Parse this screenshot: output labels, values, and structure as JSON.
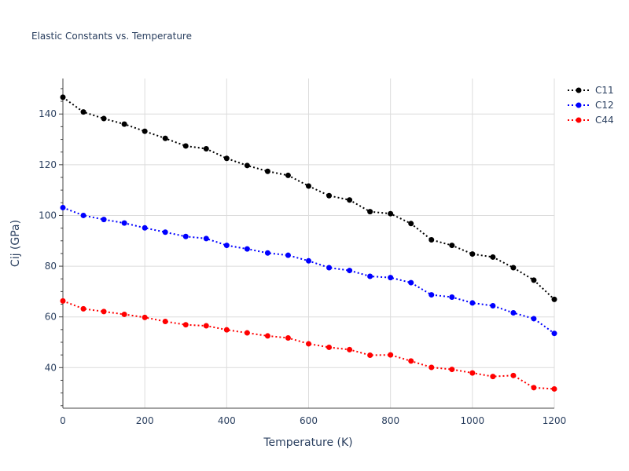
{
  "chart_data": {
    "type": "line",
    "title": "Elastic Constants vs. Temperature",
    "xlabel": "Temperature (K)",
    "ylabel": "Cij (GPa)",
    "xlim": [
      0,
      1200
    ],
    "ylim": [
      24,
      154
    ],
    "xticks": [
      0,
      200,
      400,
      600,
      800,
      1000,
      1200
    ],
    "yticks": [
      40,
      60,
      80,
      100,
      120,
      140
    ],
    "grid": true,
    "legend_position": "top-right",
    "line_style": "dotted with markers",
    "x": [
      0,
      50,
      100,
      150,
      200,
      250,
      300,
      350,
      400,
      450,
      500,
      550,
      600,
      650,
      700,
      750,
      800,
      850,
      900,
      950,
      1000,
      1050,
      1100,
      1150,
      1200
    ],
    "series": [
      {
        "name": "C11",
        "color": "#000000",
        "values": [
          146.6,
          140.8,
          138.2,
          136.0,
          133.2,
          130.4,
          127.4,
          126.3,
          122.5,
          119.7,
          117.4,
          115.8,
          111.6,
          107.8,
          106.1,
          101.5,
          100.7,
          96.8,
          90.4,
          88.2,
          84.8,
          83.6,
          79.4,
          74.5,
          66.9
        ]
      },
      {
        "name": "C12",
        "color": "#0000ff",
        "values": [
          103.1,
          100.0,
          98.4,
          97.0,
          95.1,
          93.4,
          91.7,
          90.9,
          88.2,
          86.8,
          85.2,
          84.3,
          82.1,
          79.4,
          78.3,
          76.0,
          75.5,
          73.5,
          68.7,
          67.8,
          65.5,
          64.4,
          61.6,
          59.3,
          53.5
        ]
      },
      {
        "name": "C44",
        "color": "#ff0000",
        "values": [
          66.3,
          63.2,
          62.1,
          61.0,
          59.8,
          58.2,
          56.9,
          56.5,
          54.9,
          53.7,
          52.5,
          51.7,
          49.4,
          48.0,
          47.1,
          44.9,
          45.0,
          42.6,
          40.1,
          39.3,
          37.9,
          36.5,
          36.9,
          32.1,
          31.6
        ]
      }
    ]
  }
}
